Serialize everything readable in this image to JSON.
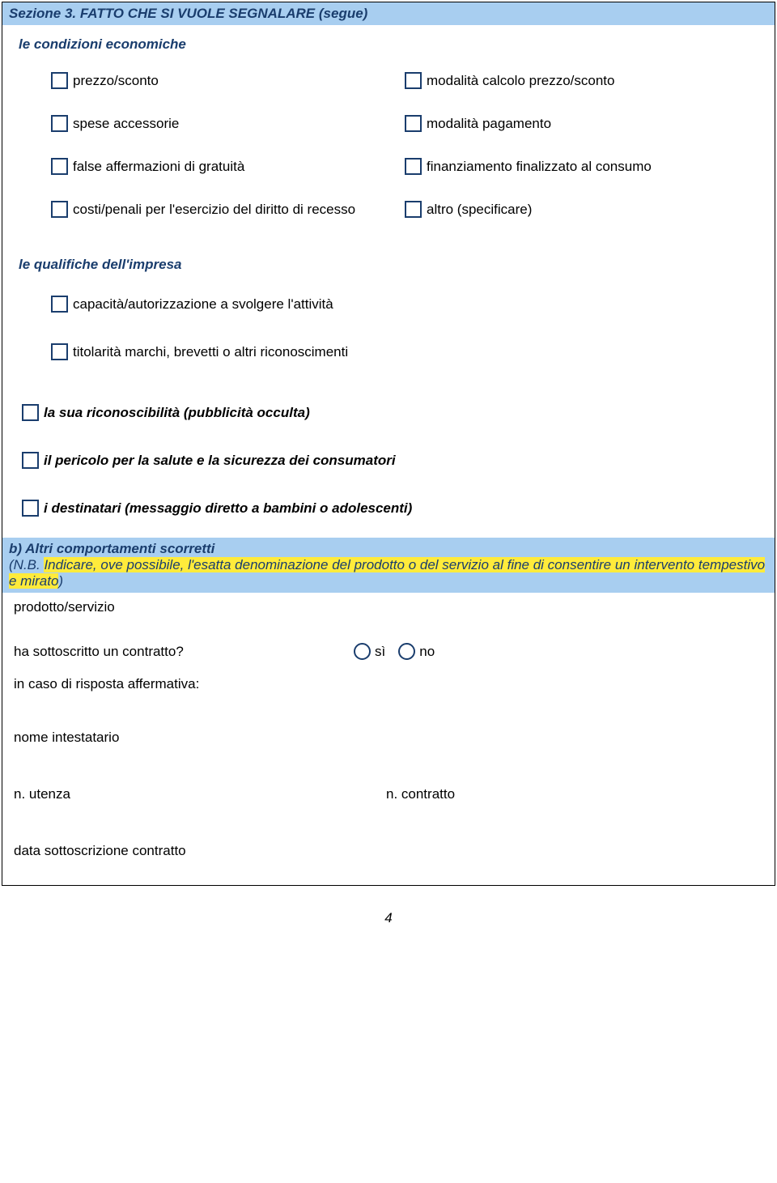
{
  "colors": {
    "headerBg": "#a8cef0",
    "headerText": "#1a3d6d",
    "highlight": "#ffeb3b",
    "checkboxBorder": "#1a3d6d",
    "bodyText": "#000000"
  },
  "sectionHeader": "Sezione 3. FATTO CHE SI VUOLE SEGNALARE (segue)",
  "condizioni": {
    "title": "le condizioni economiche",
    "rows": [
      {
        "left": "prezzo/sconto",
        "right": "modalità calcolo prezzo/sconto"
      },
      {
        "left": "spese accessorie",
        "right": "modalità pagamento"
      },
      {
        "left": "false affermazioni di gratuità",
        "right": "finanziamento finalizzato al consumo"
      },
      {
        "left": "costi/penali per l'esercizio del diritto di recesso",
        "right": "altro (specificare)"
      }
    ]
  },
  "qualifiche": {
    "title": "le qualifiche dell'impresa",
    "items": [
      "capacità/autorizzazione a svolgere l'attività",
      "titolarità marchi, brevetti o altri riconoscimenti"
    ]
  },
  "boldCheckboxes": [
    "la sua riconoscibilità (pubblicità occulta)",
    "il pericolo per la salute e la sicurezza dei consumatori",
    "i destinatari (messaggio diretto a bambini o adolescenti)"
  ],
  "sectionB": {
    "title": "b) Altri comportamenti scorretti",
    "notePrefix": "(N.B. ",
    "noteHighlighted": "Indicare, ove possibile, l'esatta denominazione del prodotto o del servizio al fine di consentire un intervento tempestivo e mirato",
    "noteSuffix": ")",
    "prodottoLabel": "prodotto/servizio",
    "contractQuestion": "ha sottoscritto un contratto?",
    "radioYes": "sì",
    "radioNo": "no",
    "affirmativeNote": "in caso di risposta affermativa:",
    "fields": {
      "intestatario": "nome intestatario",
      "utenza": "n. utenza",
      "contratto": "n. contratto",
      "dataSottoscrizione": "data sottoscrizione contratto"
    }
  },
  "pageNumber": "4"
}
